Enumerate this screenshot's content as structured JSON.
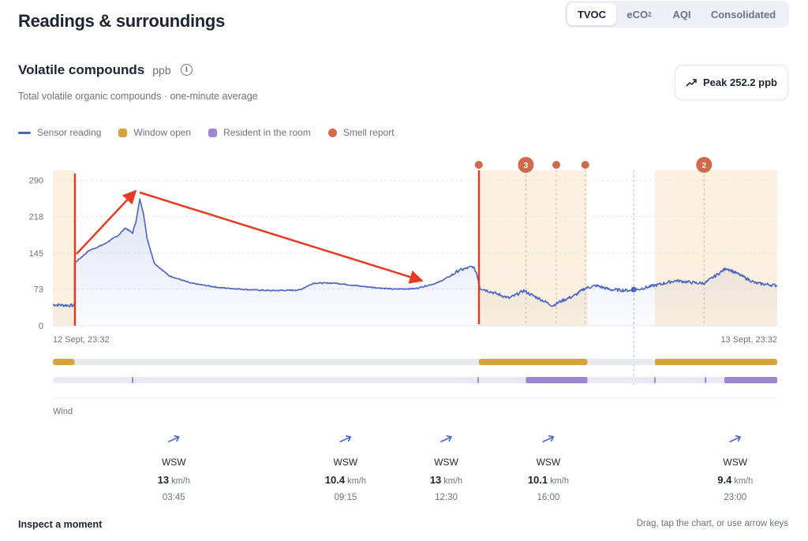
{
  "page": {
    "title": "Readings & surroundings"
  },
  "tabs": [
    {
      "label": "TVOC",
      "active": true
    },
    {
      "label": "eCO",
      "sub": "2",
      "active": false
    },
    {
      "label": "AQI",
      "active": false
    },
    {
      "label": "Consolidated",
      "active": false
    }
  ],
  "section": {
    "title": "Volatile compounds",
    "unit": "ppb",
    "info_icon": "info-icon",
    "subtitle": "Total volatile organic compounds · one-minute average"
  },
  "peak": {
    "label": "Peak 252.2 ppb",
    "icon": "trend-up-icon"
  },
  "legend": [
    {
      "label": "Sensor reading",
      "color": "#4a63c4",
      "kind": "line"
    },
    {
      "label": "Window open",
      "color": "#d9a33b",
      "kind": "box"
    },
    {
      "label": "Resident in the room",
      "color": "#9b87cf",
      "kind": "box"
    },
    {
      "label": "Smell report",
      "color": "#cf6a4b",
      "kind": "dot"
    }
  ],
  "chart_data": {
    "type": "line",
    "series": [
      {
        "name": "Sensor reading",
        "color": "#4a63c4",
        "points": [
          [
            0.0,
            42
          ],
          [
            0.03,
            40
          ],
          [
            0.03,
            125
          ],
          [
            0.05,
            150
          ],
          [
            0.07,
            162
          ],
          [
            0.09,
            180
          ],
          [
            0.1,
            195
          ],
          [
            0.11,
            185
          ],
          [
            0.115,
            210
          ],
          [
            0.12,
            252.2
          ],
          [
            0.125,
            225
          ],
          [
            0.13,
            175
          ],
          [
            0.14,
            125
          ],
          [
            0.16,
            100
          ],
          [
            0.19,
            85
          ],
          [
            0.23,
            76
          ],
          [
            0.27,
            72
          ],
          [
            0.3,
            70
          ],
          [
            0.34,
            71
          ],
          [
            0.36,
            85
          ],
          [
            0.39,
            85
          ],
          [
            0.43,
            78
          ],
          [
            0.47,
            73
          ],
          [
            0.5,
            74
          ],
          [
            0.53,
            85
          ],
          [
            0.55,
            100
          ],
          [
            0.56,
            110
          ],
          [
            0.58,
            118
          ],
          [
            0.585,
            105
          ],
          [
            0.59,
            75
          ],
          [
            0.6,
            70
          ],
          [
            0.63,
            55
          ],
          [
            0.64,
            62
          ],
          [
            0.65,
            70
          ],
          [
            0.66,
            62
          ],
          [
            0.67,
            55
          ],
          [
            0.69,
            40
          ],
          [
            0.7,
            48
          ],
          [
            0.72,
            60
          ],
          [
            0.735,
            75
          ],
          [
            0.75,
            80
          ],
          [
            0.77,
            72
          ],
          [
            0.8,
            70
          ],
          [
            0.83,
            80
          ],
          [
            0.86,
            90
          ],
          [
            0.89,
            85
          ],
          [
            0.9,
            85
          ],
          [
            0.91,
            95
          ],
          [
            0.93,
            115
          ],
          [
            0.95,
            100
          ],
          [
            0.97,
            85
          ],
          [
            1.0,
            80
          ]
        ]
      }
    ],
    "x_start_label": "12 Sept, 23:32",
    "x_end_label": "13 Sept, 23:32",
    "y_ticks": [
      0,
      73,
      145,
      218,
      290
    ],
    "ylim": [
      0,
      310
    ],
    "window_open": [
      [
        0.0,
        0.03
      ],
      [
        0.588,
        0.738
      ],
      [
        0.831,
        1.0
      ]
    ],
    "resident_present": [
      [
        0.109,
        0.111
      ],
      [
        0.586,
        0.588
      ],
      [
        0.653,
        0.738
      ],
      [
        0.83,
        0.832
      ],
      [
        0.9,
        0.902
      ],
      [
        0.927,
        1.0
      ]
    ],
    "smell_reports": [
      {
        "x": 0.588,
        "count": null
      },
      {
        "x": 0.653,
        "count": "3"
      },
      {
        "x": 0.695,
        "count": null
      },
      {
        "x": 0.735,
        "count": null
      },
      {
        "x": 0.899,
        "count": "2"
      }
    ],
    "cursor_x": 0.802,
    "grid": true,
    "legend_position": "top-left"
  },
  "wind": {
    "label": "Wind",
    "readings": [
      {
        "time": "03:45",
        "dir": "WSW",
        "speed": "13",
        "unit": "km/h",
        "x": 0.167
      },
      {
        "time": "09:15",
        "dir": "WSW",
        "speed": "10.4",
        "unit": "km/h",
        "x": 0.404
      },
      {
        "time": "12:30",
        "dir": "WSW",
        "speed": "13",
        "unit": "km/h",
        "x": 0.543
      },
      {
        "time": "16:00",
        "dir": "WSW",
        "speed": "10.1",
        "unit": "km/h",
        "x": 0.684
      },
      {
        "time": "23:00",
        "dir": "WSW",
        "speed": "9.4",
        "unit": "km/h",
        "x": 0.942
      }
    ]
  },
  "annotation_color": "#e83a23",
  "footer": {
    "left": "Inspect a moment",
    "right": "Drag, tap the chart, or use arrow keys"
  }
}
